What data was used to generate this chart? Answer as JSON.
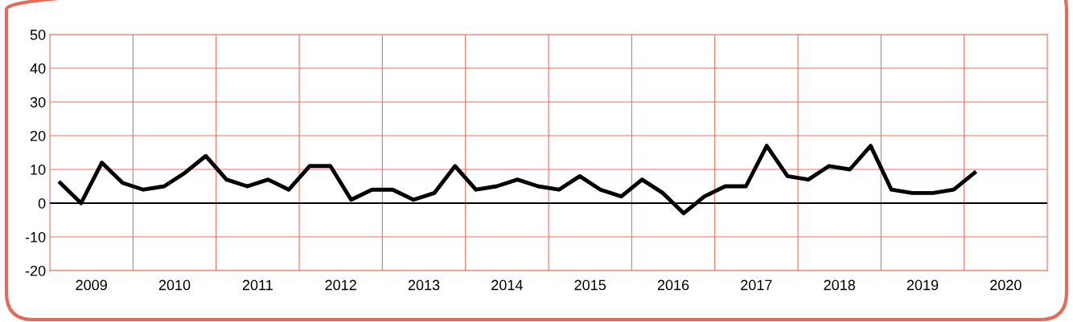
{
  "chart_data": {
    "type": "line",
    "x": [
      2009.125,
      2009.375,
      2009.625,
      2009.875,
      2010.125,
      2010.375,
      2010.625,
      2010.875,
      2011.125,
      2011.375,
      2011.625,
      2011.875,
      2012.125,
      2012.375,
      2012.625,
      2012.875,
      2013.125,
      2013.375,
      2013.625,
      2013.875,
      2014.125,
      2014.375,
      2014.625,
      2014.875,
      2015.125,
      2015.375,
      2015.625,
      2015.875,
      2016.125,
      2016.375,
      2016.625,
      2016.875,
      2017.125,
      2017.375,
      2017.625,
      2017.875,
      2018.125,
      2018.375,
      2018.625,
      2018.875,
      2019.125,
      2019.375,
      2019.625,
      2019.875,
      2020.125
    ],
    "series": [
      {
        "color": "#000000",
        "values": [
          6,
          0,
          12,
          6,
          4,
          5,
          9,
          14,
          7,
          5,
          7,
          4,
          11,
          11,
          1,
          4,
          4,
          1,
          3,
          11,
          4,
          5,
          7,
          5,
          4,
          8,
          4,
          2,
          7,
          3,
          -3,
          2,
          5,
          5,
          17,
          8,
          7,
          11,
          10,
          17,
          4,
          3,
          3,
          4,
          9
        ]
      }
    ],
    "xlim": [
      2009,
      2021
    ],
    "xticks": [
      {
        "value": 2010,
        "label": null
      },
      {
        "value": 2011,
        "label": null
      },
      {
        "value": 2012,
        "label": null
      },
      {
        "value": 2013,
        "label": null
      },
      {
        "value": 2014,
        "label": null
      },
      {
        "value": 2015,
        "label": null
      },
      {
        "value": 2016,
        "label": null
      },
      {
        "value": 2017,
        "label": null
      },
      {
        "value": 2018,
        "label": null
      },
      {
        "value": 2019,
        "label": null
      },
      {
        "value": 2020,
        "label": null
      },
      {
        "value": 2009.5,
        "label": "2009"
      },
      {
        "value": 2010.5,
        "label": "2010"
      },
      {
        "value": 2011.5,
        "label": "2011"
      },
      {
        "value": 2012.5,
        "label": "2012"
      },
      {
        "value": 2013.5,
        "label": "2013"
      },
      {
        "value": 2014.5,
        "label": "2014"
      },
      {
        "value": 2015.5,
        "label": "2015"
      },
      {
        "value": 2016.5,
        "label": "2016"
      },
      {
        "value": 2017.5,
        "label": "2017"
      },
      {
        "value": 2018.5,
        "label": "2018"
      },
      {
        "value": 2019.5,
        "label": "2019"
      },
      {
        "value": 2020.5,
        "label": "2020"
      }
    ],
    "ylim": [
      -20,
      50
    ],
    "yticks": [
      -20,
      -10,
      0,
      10,
      20,
      30,
      40,
      50
    ],
    "grid": true,
    "marker": "none",
    "line_style": "solid",
    "ref_lines": [
      {
        "axis": "y",
        "value": 0,
        "color": "#000000"
      }
    ]
  }
}
